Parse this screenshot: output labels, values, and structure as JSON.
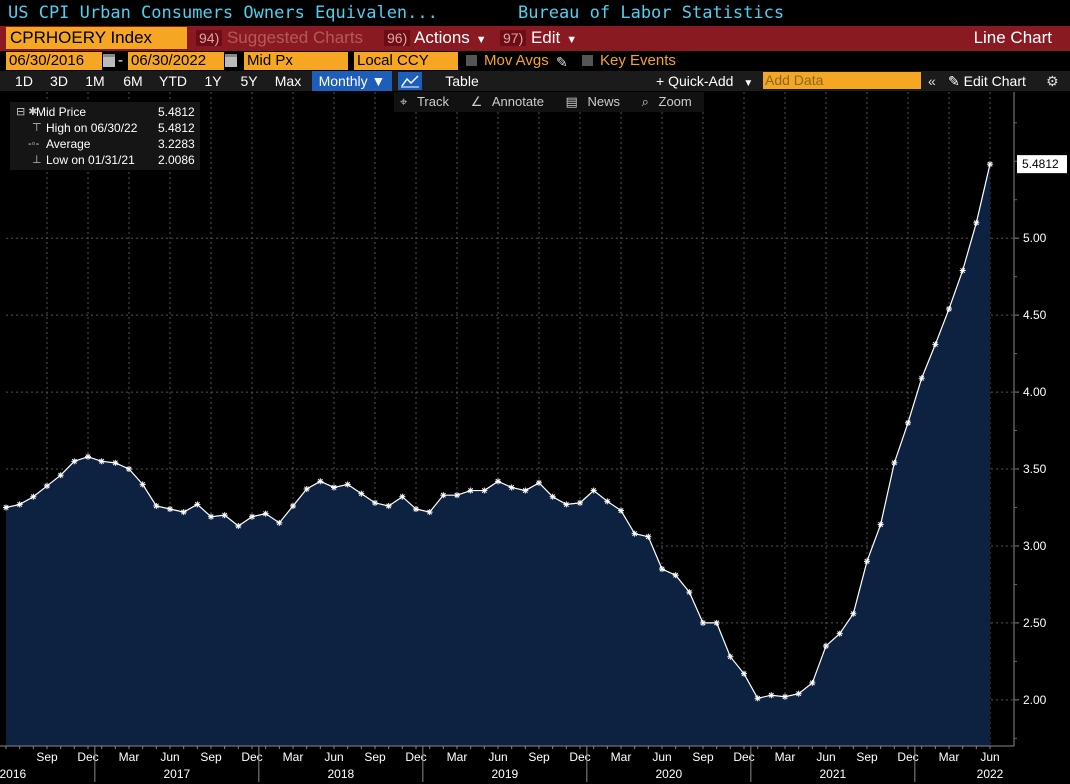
{
  "header": {
    "title": "US CPI Urban Consumers Owners Equivalen...",
    "source": "Bureau of Labor Statistics"
  },
  "toolbar1": {
    "ticker": "CPRHOERY Index",
    "suggested": {
      "num": "94)",
      "label": "Suggested Charts"
    },
    "actions": {
      "num": "96)",
      "label": "Actions"
    },
    "edit": {
      "num": "97)",
      "label": "Edit"
    },
    "chart_type": "Line Chart"
  },
  "toolbar2": {
    "start_date": "06/30/2016",
    "dash": "-",
    "end_date": "06/30/2022",
    "price_field": "Mid Px",
    "currency": "Local CCY",
    "mov_avgs": "Mov Avgs",
    "key_events": "Key Events"
  },
  "toolbar3": {
    "timeframes": [
      "1D",
      "3D",
      "1M",
      "6M",
      "YTD",
      "1Y",
      "5Y",
      "Max"
    ],
    "frequency": "Monthly ▼",
    "table": "Table",
    "quick_add": "+ Quick-Add",
    "add_data_placeholder": "Add Data",
    "edit_chart": "Edit Chart"
  },
  "tools": {
    "track": "Track",
    "annotate": "Annotate",
    "news": "News",
    "zoom": "Zoom"
  },
  "legend": [
    {
      "label": "Mid Price",
      "value": "5.4812"
    },
    {
      "label": "High on 06/30/22",
      "value": "5.4812"
    },
    {
      "label": "Average",
      "value": "3.2283"
    },
    {
      "label": "Low on 01/31/21",
      "value": "2.0086"
    }
  ],
  "colors": {
    "area_fill": "#0d2240",
    "line": "#ffffff",
    "accent_orange": "#f5a623",
    "header_red": "#8a1a22",
    "title_cyan": "#4fd0f0"
  },
  "chart_data": {
    "type": "area",
    "frequency": "monthly",
    "start": "2016-06",
    "last_value_label": "5.4812",
    "ylim": [
      1.7,
      5.95
    ],
    "yticks": [
      2.0,
      2.5,
      3.0,
      3.5,
      4.0,
      4.5,
      5.0
    ],
    "ytick_labels": [
      "2.00",
      "2.50",
      "3.00",
      "3.50",
      "4.00",
      "4.50",
      "5.00"
    ],
    "xtick_labels": [
      {
        "label": "Sep",
        "date": "2016-09"
      },
      {
        "label": "Dec",
        "date": "2016-12"
      },
      {
        "label": "Mar",
        "date": "2017-03"
      },
      {
        "label": "Jun",
        "date": "2017-06"
      },
      {
        "label": "Sep",
        "date": "2017-09"
      },
      {
        "label": "Dec",
        "date": "2017-12"
      },
      {
        "label": "Mar",
        "date": "2018-03"
      },
      {
        "label": "Jun",
        "date": "2018-06"
      },
      {
        "label": "Sep",
        "date": "2018-09"
      },
      {
        "label": "Dec",
        "date": "2018-12"
      },
      {
        "label": "Mar",
        "date": "2019-03"
      },
      {
        "label": "Jun",
        "date": "2019-06"
      },
      {
        "label": "Sep",
        "date": "2019-09"
      },
      {
        "label": "Dec",
        "date": "2019-12"
      },
      {
        "label": "Mar",
        "date": "2020-03"
      },
      {
        "label": "Jun",
        "date": "2020-06"
      },
      {
        "label": "Sep",
        "date": "2020-09"
      },
      {
        "label": "Dec",
        "date": "2020-12"
      },
      {
        "label": "Mar",
        "date": "2021-03"
      },
      {
        "label": "Jun",
        "date": "2021-06"
      },
      {
        "label": "Sep",
        "date": "2021-09"
      },
      {
        "label": "Dec",
        "date": "2021-12"
      },
      {
        "label": "Mar",
        "date": "2022-03"
      },
      {
        "label": "Jun",
        "date": "2022-06"
      }
    ],
    "year_labels": [
      {
        "label": "2016",
        "date": "2016-12"
      },
      {
        "label": "2017",
        "date": "2017-12"
      },
      {
        "label": "2018",
        "date": "2018-12"
      },
      {
        "label": "2019",
        "date": "2019-12"
      },
      {
        "label": "2020",
        "date": "2020-12"
      },
      {
        "label": "2021",
        "date": "2021-12"
      },
      {
        "label": "2022",
        "date": "2022-06"
      }
    ],
    "x": [
      "2016-06",
      "2016-07",
      "2016-08",
      "2016-09",
      "2016-10",
      "2016-11",
      "2016-12",
      "2017-01",
      "2017-02",
      "2017-03",
      "2017-04",
      "2017-05",
      "2017-06",
      "2017-07",
      "2017-08",
      "2017-09",
      "2017-10",
      "2017-11",
      "2017-12",
      "2018-01",
      "2018-02",
      "2018-03",
      "2018-04",
      "2018-05",
      "2018-06",
      "2018-07",
      "2018-08",
      "2018-09",
      "2018-10",
      "2018-11",
      "2018-12",
      "2019-01",
      "2019-02",
      "2019-03",
      "2019-04",
      "2019-05",
      "2019-06",
      "2019-07",
      "2019-08",
      "2019-09",
      "2019-10",
      "2019-11",
      "2019-12",
      "2020-01",
      "2020-02",
      "2020-03",
      "2020-04",
      "2020-05",
      "2020-06",
      "2020-07",
      "2020-08",
      "2020-09",
      "2020-10",
      "2020-11",
      "2020-12",
      "2021-01",
      "2021-02",
      "2021-03",
      "2021-04",
      "2021-05",
      "2021-06",
      "2021-07",
      "2021-08",
      "2021-09",
      "2021-10",
      "2021-11",
      "2021-12",
      "2022-01",
      "2022-02",
      "2022-03",
      "2022-04",
      "2022-05",
      "2022-06"
    ],
    "values": [
      3.25,
      3.27,
      3.32,
      3.39,
      3.46,
      3.55,
      3.58,
      3.55,
      3.54,
      3.5,
      3.4,
      3.26,
      3.24,
      3.22,
      3.27,
      3.19,
      3.2,
      3.13,
      3.19,
      3.21,
      3.15,
      3.26,
      3.37,
      3.42,
      3.38,
      3.4,
      3.34,
      3.28,
      3.26,
      3.32,
      3.24,
      3.22,
      3.33,
      3.33,
      3.36,
      3.36,
      3.42,
      3.38,
      3.36,
      3.41,
      3.32,
      3.27,
      3.28,
      3.36,
      3.29,
      3.23,
      3.08,
      3.06,
      2.85,
      2.81,
      2.7,
      2.5,
      2.5,
      2.28,
      2.17,
      2.01,
      2.03,
      2.02,
      2.04,
      2.11,
      2.35,
      2.43,
      2.56,
      2.9,
      3.14,
      3.54,
      3.8,
      4.09,
      4.31,
      4.54,
      4.79,
      5.1,
      5.4812
    ]
  }
}
